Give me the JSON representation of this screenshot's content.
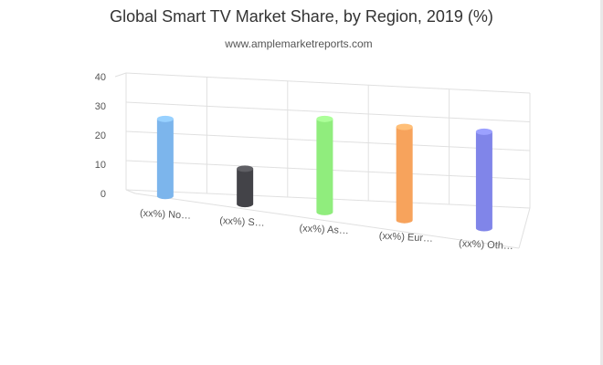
{
  "chart_data": {
    "type": "bar",
    "title": "Global Smart TV Market Share, by Region, 2019 (%)",
    "subtitle": "www.amplemarketreports.com",
    "categories": [
      "(xx%) No…",
      "(xx%) S…",
      "(xx%) As…",
      "(xx%) Eur…",
      "(xx%) Oth…"
    ],
    "values": [
      24,
      11,
      29,
      29,
      30
    ],
    "colors": [
      "#7cb5ec",
      "#434348",
      "#90ed7d",
      "#f7a35c",
      "#8085e9"
    ],
    "ylim": [
      0,
      40
    ],
    "yticks": [
      0,
      10,
      20,
      30,
      40
    ],
    "grid": true,
    "legend": "none",
    "style": "3d-cylinder"
  }
}
